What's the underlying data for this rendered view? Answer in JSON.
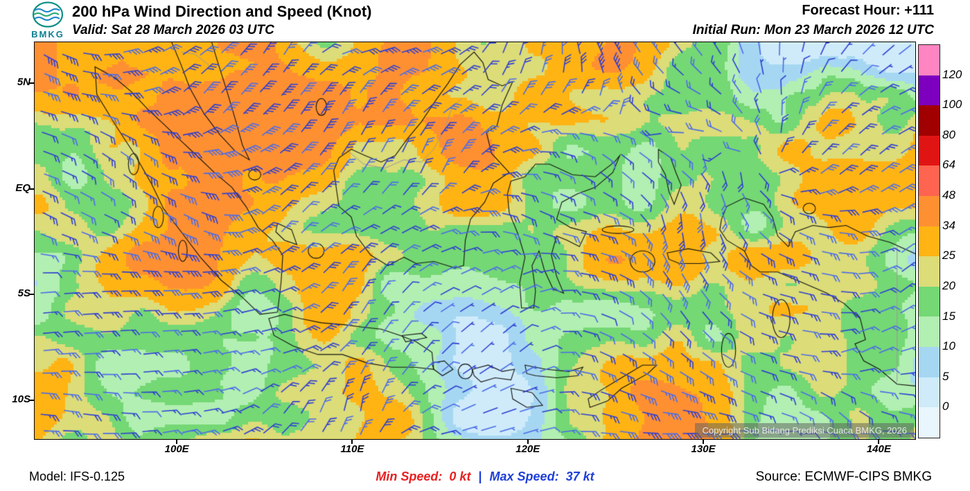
{
  "header": {
    "logo_text": "BMKG",
    "title": "200 hPa Wind Direction and Speed (Knot)",
    "valid": "Valid: Sat 28 March 2026 03 UTC",
    "forecast_hour": "Forecast Hour: +111",
    "initial_run": "Initial Run: Mon 23 March 2026 12 UTC"
  },
  "map": {
    "copyright": "Copyright Sub Bidang Prediksi Cuaca BMKG, 2026",
    "lat_ticks": [
      {
        "label": "5N",
        "deg": 5
      },
      {
        "label": "EQ",
        "deg": 0
      },
      {
        "label": "5S",
        "deg": -5
      },
      {
        "label": "10S",
        "deg": -10
      }
    ],
    "lon_ticks": [
      {
        "label": "100E",
        "deg": 100
      },
      {
        "label": "110E",
        "deg": 110
      },
      {
        "label": "120E",
        "deg": 120
      },
      {
        "label": "130E",
        "deg": 130
      },
      {
        "label": "140E",
        "deg": 140
      }
    ]
  },
  "legend": {
    "labels": [
      "120",
      "100",
      "80",
      "64",
      "48",
      "34",
      "25",
      "20",
      "15",
      "10",
      "5",
      "0"
    ],
    "colors": [
      "#FF85C2",
      "#7D00BE",
      "#A00000",
      "#E11414",
      "#FF6450",
      "#FF9032",
      "#FFB414",
      "#DCDC78",
      "#74D874",
      "#B2EFB2",
      "#A6D7F2",
      "#CFEBFA",
      "#E9F6FD"
    ],
    "barb_color_dark": "#2E3FD2",
    "barb_color_light": "#4A6BE8"
  },
  "footer": {
    "model": "Model: IFS-0.125",
    "min_label": "Min Speed:",
    "min_value": "0 kt",
    "separator": "|",
    "max_label": "Max Speed:",
    "max_value": "37 kt",
    "source": "Source: ECMWF-CIPS BMKG"
  }
}
